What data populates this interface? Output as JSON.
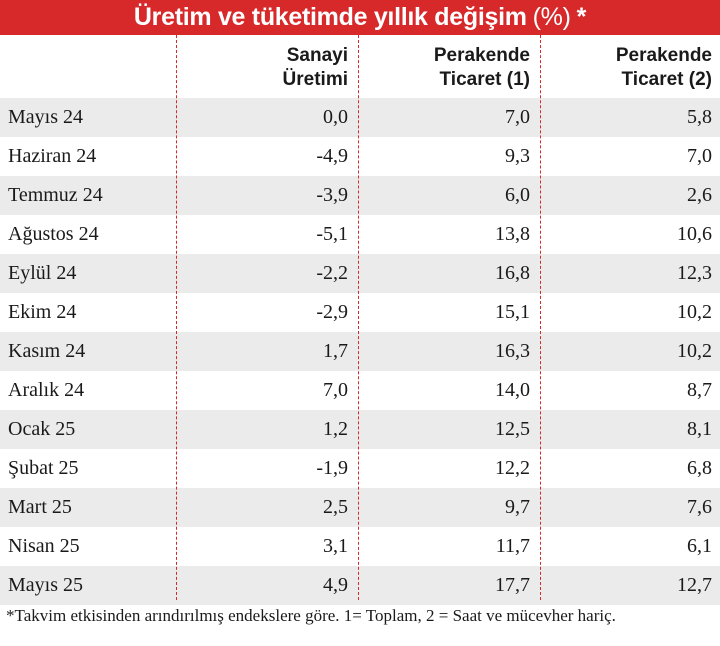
{
  "title": "Üretim ve tüketimde yıllık değişim",
  "title_unit": "(%)",
  "title_star": "*",
  "colors": {
    "accent": "#d7282a",
    "row_shade": "#ebebeb"
  },
  "chart_data": {
    "type": "table",
    "columns": [
      "",
      "Sanayi\nÜretimi",
      "Perakende\nTicaret (1)",
      "Perakende\nTicaret (2)"
    ],
    "rows": [
      [
        "Mayıs 24",
        "0,0",
        "7,0",
        "5,8"
      ],
      [
        "Haziran 24",
        "-4,9",
        "9,3",
        "7,0"
      ],
      [
        "Temmuz 24",
        "-3,9",
        "6,0",
        "2,6"
      ],
      [
        "Ağustos 24",
        "-5,1",
        "13,8",
        "10,6"
      ],
      [
        "Eylül 24",
        "-2,2",
        "16,8",
        "12,3"
      ],
      [
        "Ekim 24",
        "-2,9",
        "15,1",
        "10,2"
      ],
      [
        "Kasım 24",
        "1,7",
        "16,3",
        "10,2"
      ],
      [
        "Aralık 24",
        "7,0",
        "14,0",
        "8,7"
      ],
      [
        "Ocak 25",
        "1,2",
        "12,5",
        "8,1"
      ],
      [
        "Şubat 25",
        "-1,9",
        "12,2",
        "6,8"
      ],
      [
        "Mart 25",
        "2,5",
        "9,7",
        "7,6"
      ],
      [
        "Nisan 25",
        "3,1",
        "11,7",
        "6,1"
      ],
      [
        "Mayıs 25",
        "4,9",
        "17,7",
        "12,7"
      ]
    ]
  },
  "footnote": "*Takvim etkisinden arındırılmış endekslere göre. 1= Toplam, 2 = Saat ve mücevher hariç."
}
